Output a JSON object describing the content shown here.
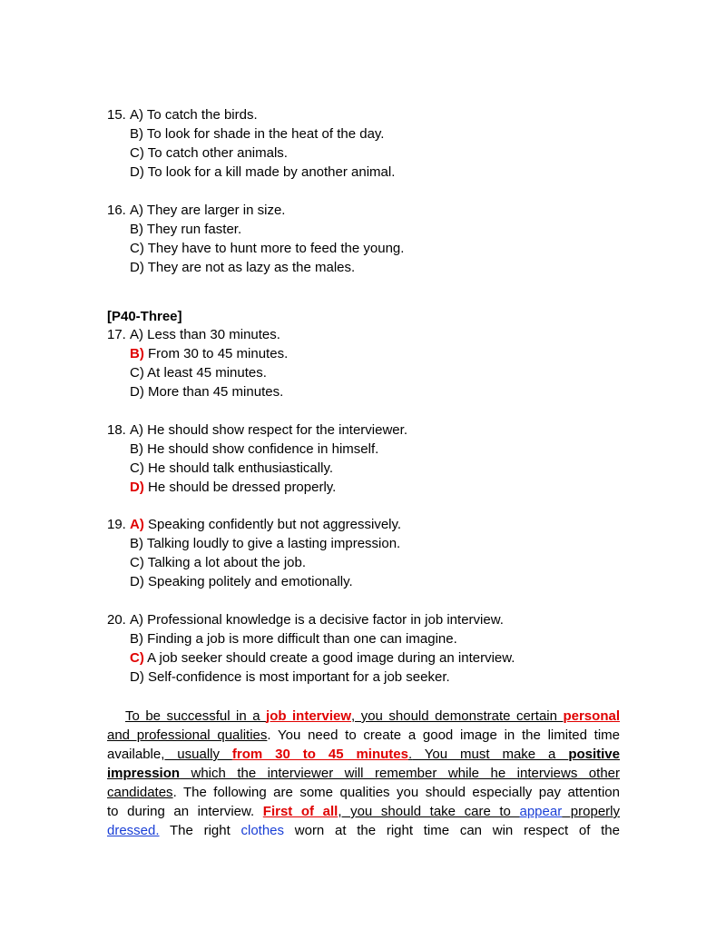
{
  "questions": [
    {
      "number": "15.",
      "options": [
        {
          "letter": "A)",
          "text": "To catch the birds."
        },
        {
          "letter": "B)",
          "text": "To look for shade in the heat of the day."
        },
        {
          "letter": "C)",
          "text": "To catch other animals."
        },
        {
          "letter": "D)",
          "text": "To look for a kill made by another animal."
        }
      ]
    },
    {
      "number": "16.",
      "options": [
        {
          "letter": "A)",
          "text": "They are larger in size."
        },
        {
          "letter": "B)",
          "text": "They run faster."
        },
        {
          "letter": "C)",
          "text": "They have to hunt more to feed the young."
        },
        {
          "letter": "D)",
          "text": "They are not as lazy as the males."
        }
      ]
    },
    {
      "number": "17.",
      "options": [
        {
          "letter": "A)",
          "text": "Less than 30 minutes."
        },
        {
          "letter": "B)",
          "text": "From 30 to 45 minutes."
        },
        {
          "letter": "C)",
          "text": "At least 45 minutes."
        },
        {
          "letter": "D)",
          "text": "More than 45 minutes."
        }
      ]
    },
    {
      "number": "18.",
      "options": [
        {
          "letter": "A)",
          "text": "He should show respect for the interviewer."
        },
        {
          "letter": "B)",
          "text": "He should show confidence in himself."
        },
        {
          "letter": "C)",
          "text": "He should talk enthusiastically."
        },
        {
          "letter": "D)",
          "text": "He should be dressed properly."
        }
      ]
    },
    {
      "number": "19.",
      "options": [
        {
          "letter": "A)",
          "text": "Speaking confidently but not aggressively."
        },
        {
          "letter": "B)",
          "text": "Talking loudly to give a lasting impression."
        },
        {
          "letter": "C)",
          "text": "Talking a lot about the job."
        },
        {
          "letter": "D)",
          "text": "Speaking politely and emotionally."
        }
      ]
    },
    {
      "number": "20.",
      "options": [
        {
          "letter": "A)",
          "text": "Professional knowledge is a decisive factor in job interview."
        },
        {
          "letter": "B)",
          "text": "Finding a job is more difficult than one can imagine."
        },
        {
          "letter": "C)",
          "text": "A job seeker should create a good image during an interview."
        },
        {
          "letter": "D)",
          "text": "Self-confidence is most important for a job seeker."
        }
      ]
    }
  ],
  "section_header": "[P40-Three]",
  "paragraph": {
    "lines": [
      [
        "To be successful in a ",
        "job interview",
        ", you should demonstrate certain ",
        "personal"
      ],
      [
        "and professional qualities",
        ". You need to create a good image in the limited time"
      ],
      [
        "available,",
        " usually ",
        "from 30 to 45 minutes",
        ".",
        " You must make a ",
        "positive"
      ],
      [
        "impression",
        " which the interviewer will remember while he interviews other"
      ],
      [
        "candidates",
        ". The following are some qualities you should especially pay attention"
      ],
      [
        "to during an interview. ",
        "First of all",
        ", you should take care to ",
        "appear",
        " properly"
      ],
      [
        "dressed.",
        " The right ",
        "clothes",
        " worn at the right time can win respect of the"
      ]
    ]
  }
}
